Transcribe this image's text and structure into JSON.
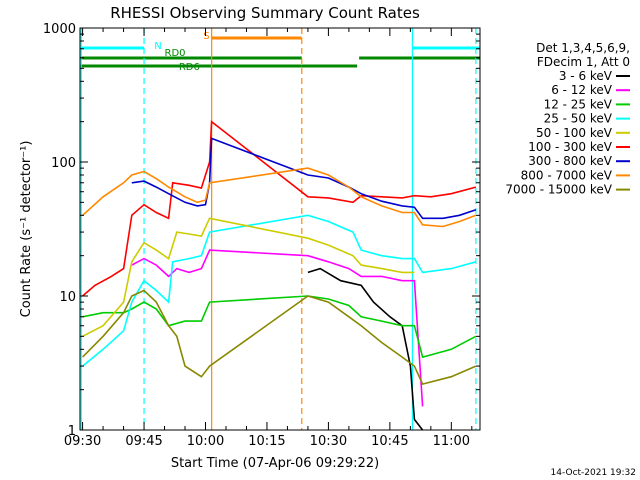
{
  "chart_data": {
    "type": "line",
    "title": "RHESSI Observing Summary Count Rates",
    "xlabel": "Start Time (07-Apr-06 09:29:22)",
    "ylabel": "Count Rate (s⁻¹ detector⁻¹)",
    "yscale": "log",
    "ylim": [
      1,
      1000
    ],
    "xlim": [
      "09:29:22",
      "11:07:00"
    ],
    "x_ticks": [
      "09:30",
      "09:45",
      "10:00",
      "10:15",
      "10:30",
      "10:45",
      "11:00"
    ],
    "y_ticks": [
      "1",
      "10",
      "100",
      "1000"
    ],
    "grid": false,
    "legend_title": [
      "Det 1,3,4,5,6,9,",
      "FDecim 1, Att 0"
    ],
    "legend_placement": "right",
    "timestamp": "14-Oct-2021 19:32",
    "colors": {
      "s_3_6": "#000000",
      "s_6_12": "#ff00ff",
      "s_12_25": "#00cc00",
      "s_25_50": "#00ffff",
      "s_50_100": "#cccc00",
      "s_100_300": "#ff0000",
      "s_300_800": "#0000cc",
      "s_800_7000": "#ff8800",
      "s_7000_15000": "#888800",
      "flag_n": "#00ffff",
      "flag_s": "#ff8800",
      "flag_rd": "#008800"
    },
    "flags": [
      {
        "label": "N",
        "color": "#00ffff",
        "segments": [
          [
            "09:29:22",
            "09:45:00"
          ],
          [
            "10:50:30",
            "11:07:00"
          ]
        ]
      },
      {
        "label": "S",
        "color": "#ff8800",
        "segments": [
          [
            "10:01:30",
            "10:23:30"
          ]
        ]
      },
      {
        "label": "RD0",
        "color": "#008800",
        "segments": [
          [
            "09:29:22",
            "10:23:30"
          ],
          [
            "10:37:30",
            "11:07:00"
          ]
        ]
      },
      {
        "label": "RD6",
        "color": "#008800",
        "segments": [
          [
            "09:29:22",
            "10:23:30"
          ],
          [
            "10:23:30",
            "10:37:00"
          ]
        ]
      }
    ],
    "vlines": [
      {
        "x": "09:29:40",
        "color": "#00ffff",
        "style": "solid"
      },
      {
        "x": "09:45:00",
        "color": "#00ffff",
        "style": "dashed"
      },
      {
        "x": "10:01:30",
        "color": "#ff8800",
        "style": "solid"
      },
      {
        "x": "10:23:30",
        "color": "#ff8800",
        "style": "dashed"
      },
      {
        "x": "10:50:30",
        "color": "#00ffff",
        "style": "solid"
      },
      {
        "x": "11:06:00",
        "color": "#00ffff",
        "style": "dashed"
      }
    ],
    "series": [
      {
        "name": "3 - 6 keV",
        "color": "#000000",
        "points": [
          [
            "10:25:00",
            15
          ],
          [
            "10:28:00",
            16
          ],
          [
            "10:33:00",
            13
          ],
          [
            "10:38:00",
            12
          ],
          [
            "10:41:00",
            9
          ],
          [
            "10:45:00",
            7
          ],
          [
            "10:48:00",
            6
          ],
          [
            "10:50:00",
            3
          ],
          [
            "10:51:00",
            1.2
          ],
          [
            "10:53:00",
            1.0
          ]
        ]
      },
      {
        "name": "6 - 12 keV",
        "color": "#ff00ff",
        "points": [
          [
            "09:42:00",
            17
          ],
          [
            "09:45:00",
            19
          ],
          [
            "09:48:00",
            17
          ],
          [
            "09:51:00",
            14
          ],
          [
            "09:53:00",
            16
          ],
          [
            "09:56:00",
            15
          ],
          [
            "09:59:00",
            16
          ],
          [
            "10:01:00",
            22
          ],
          [
            "10:25:00",
            20
          ],
          [
            "10:30:00",
            18
          ],
          [
            "10:35:00",
            16
          ],
          [
            "10:38:00",
            14
          ],
          [
            "10:43:00",
            14
          ],
          [
            "10:48:00",
            13
          ],
          [
            "10:51:00",
            13
          ],
          [
            "10:53:00",
            1.5
          ]
        ]
      },
      {
        "name": "12 - 25 keV",
        "color": "#00cc00",
        "points": [
          [
            "09:30:00",
            7
          ],
          [
            "09:35:00",
            7.5
          ],
          [
            "09:40:00",
            7.5
          ],
          [
            "09:42:00",
            8
          ],
          [
            "09:45:00",
            9
          ],
          [
            "09:48:00",
            8
          ],
          [
            "09:51:00",
            6
          ],
          [
            "09:55:00",
            6.5
          ],
          [
            "09:59:00",
            6.5
          ],
          [
            "10:01:00",
            9
          ],
          [
            "10:25:00",
            10
          ],
          [
            "10:30:00",
            9.5
          ],
          [
            "10:35:00",
            8.5
          ],
          [
            "10:38:00",
            7
          ],
          [
            "10:43:00",
            6.5
          ],
          [
            "10:48:00",
            6
          ],
          [
            "10:51:00",
            6
          ],
          [
            "10:53:00",
            3.5
          ],
          [
            "11:00:00",
            4
          ],
          [
            "11:06:00",
            5
          ]
        ]
      },
      {
        "name": "25 - 50 keV",
        "color": "#00ffff",
        "points": [
          [
            "09:30:00",
            3
          ],
          [
            "09:35:00",
            4
          ],
          [
            "09:40:00",
            5.5
          ],
          [
            "09:42:00",
            9
          ],
          [
            "09:45:00",
            13
          ],
          [
            "09:48:00",
            11
          ],
          [
            "09:51:00",
            9
          ],
          [
            "09:52:00",
            18
          ],
          [
            "09:56:00",
            19
          ],
          [
            "09:59:00",
            20
          ],
          [
            "10:01:00",
            30
          ],
          [
            "10:25:00",
            40
          ],
          [
            "10:30:00",
            36
          ],
          [
            "10:36:00",
            30
          ],
          [
            "10:38:00",
            22
          ],
          [
            "10:43:00",
            20
          ],
          [
            "10:48:00",
            19
          ],
          [
            "10:51:00",
            19
          ],
          [
            "10:53:00",
            15
          ],
          [
            "11:00:00",
            16
          ],
          [
            "11:06:00",
            18
          ]
        ]
      },
      {
        "name": "50 - 100 keV",
        "color": "#cccc00",
        "points": [
          [
            "09:30:00",
            5
          ],
          [
            "09:35:00",
            6
          ],
          [
            "09:40:00",
            9
          ],
          [
            "09:42:00",
            18
          ],
          [
            "09:45:00",
            25
          ],
          [
            "09:48:00",
            22
          ],
          [
            "09:51:00",
            19
          ],
          [
            "09:53:00",
            30
          ],
          [
            "09:56:00",
            29
          ],
          [
            "09:59:00",
            28
          ],
          [
            "10:01:00",
            38
          ],
          [
            "10:25:00",
            27
          ],
          [
            "10:30:00",
            24
          ],
          [
            "10:36:00",
            20
          ],
          [
            "10:38:00",
            17
          ],
          [
            "10:43:00",
            16
          ],
          [
            "10:48:00",
            15
          ],
          [
            "10:51:00",
            15
          ]
        ]
      },
      {
        "name": "100 - 300 keV",
        "color": "#ff0000",
        "points": [
          [
            "09:30:00",
            10
          ],
          [
            "09:33:00",
            12
          ],
          [
            "09:37:00",
            14
          ],
          [
            "09:40:00",
            16
          ],
          [
            "09:42:00",
            40
          ],
          [
            "09:45:00",
            48
          ],
          [
            "09:48:00",
            42
          ],
          [
            "09:51:00",
            38
          ],
          [
            "09:52:00",
            70
          ],
          [
            "09:56:00",
            67
          ],
          [
            "09:59:00",
            64
          ],
          [
            "10:01:00",
            100
          ],
          [
            "10:01:30",
            200
          ],
          [
            "10:25:00",
            55
          ],
          [
            "10:30:00",
            54
          ],
          [
            "10:36:00",
            50
          ],
          [
            "10:38:00",
            56
          ],
          [
            "10:43:00",
            55
          ],
          [
            "10:48:00",
            54
          ],
          [
            "10:51:00",
            56
          ],
          [
            "10:55:00",
            55
          ],
          [
            "11:00:00",
            58
          ],
          [
            "11:06:00",
            65
          ]
        ]
      },
      {
        "name": "300 - 800 keV",
        "color": "#0000cc",
        "points": [
          [
            "09:42:00",
            70
          ],
          [
            "09:45:00",
            72
          ],
          [
            "09:48:00",
            65
          ],
          [
            "09:51:00",
            58
          ],
          [
            "09:55:00",
            50
          ],
          [
            "09:58:00",
            47
          ],
          [
            "10:00:00",
            48
          ],
          [
            "10:01:00",
            70
          ],
          [
            "10:01:30",
            150
          ],
          [
            "10:25:00",
            80
          ],
          [
            "10:30:00",
            76
          ],
          [
            "10:35:00",
            65
          ],
          [
            "10:38:00",
            58
          ],
          [
            "10:43:00",
            51
          ],
          [
            "10:48:00",
            47
          ],
          [
            "10:51:00",
            46
          ],
          [
            "10:53:00",
            38
          ],
          [
            "10:58:00",
            38
          ],
          [
            "11:02:00",
            40
          ],
          [
            "11:06:00",
            44
          ]
        ]
      },
      {
        "name": "800 - 7000 keV",
        "color": "#ff8800",
        "points": [
          [
            "09:30:00",
            40
          ],
          [
            "09:35:00",
            55
          ],
          [
            "09:40:00",
            70
          ],
          [
            "09:42:00",
            80
          ],
          [
            "09:45:00",
            85
          ],
          [
            "09:48:00",
            75
          ],
          [
            "09:51:00",
            65
          ],
          [
            "09:55:00",
            55
          ],
          [
            "09:58:00",
            50
          ],
          [
            "10:00:00",
            52
          ],
          [
            "10:01:00",
            70
          ],
          [
            "10:25:00",
            90
          ],
          [
            "10:30:00",
            80
          ],
          [
            "10:35:00",
            65
          ],
          [
            "10:38:00",
            55
          ],
          [
            "10:43:00",
            47
          ],
          [
            "10:48:00",
            42
          ],
          [
            "10:51:00",
            42
          ],
          [
            "10:53:00",
            34
          ],
          [
            "10:58:00",
            33
          ],
          [
            "11:02:00",
            36
          ],
          [
            "11:06:00",
            40
          ]
        ]
      },
      {
        "name": "7000 - 15000 keV",
        "color": "#888800",
        "points": [
          [
            "09:30:00",
            3.5
          ],
          [
            "09:35:00",
            5
          ],
          [
            "09:40:00",
            7.5
          ],
          [
            "09:42:00",
            10
          ],
          [
            "09:45:00",
            11
          ],
          [
            "09:48:00",
            9
          ],
          [
            "09:51:00",
            6
          ],
          [
            "09:53:00",
            5
          ],
          [
            "09:55:00",
            3
          ],
          [
            "09:59:00",
            2.5
          ],
          [
            "10:01:00",
            3
          ],
          [
            "10:25:00",
            10
          ],
          [
            "10:30:00",
            9
          ],
          [
            "10:35:00",
            7
          ],
          [
            "10:38:00",
            6
          ],
          [
            "10:43:00",
            4.5
          ],
          [
            "10:48:00",
            3.5
          ],
          [
            "10:51:00",
            3
          ],
          [
            "10:53:00",
            2.2
          ],
          [
            "11:00:00",
            2.5
          ],
          [
            "11:06:00",
            3
          ]
        ]
      }
    ]
  }
}
